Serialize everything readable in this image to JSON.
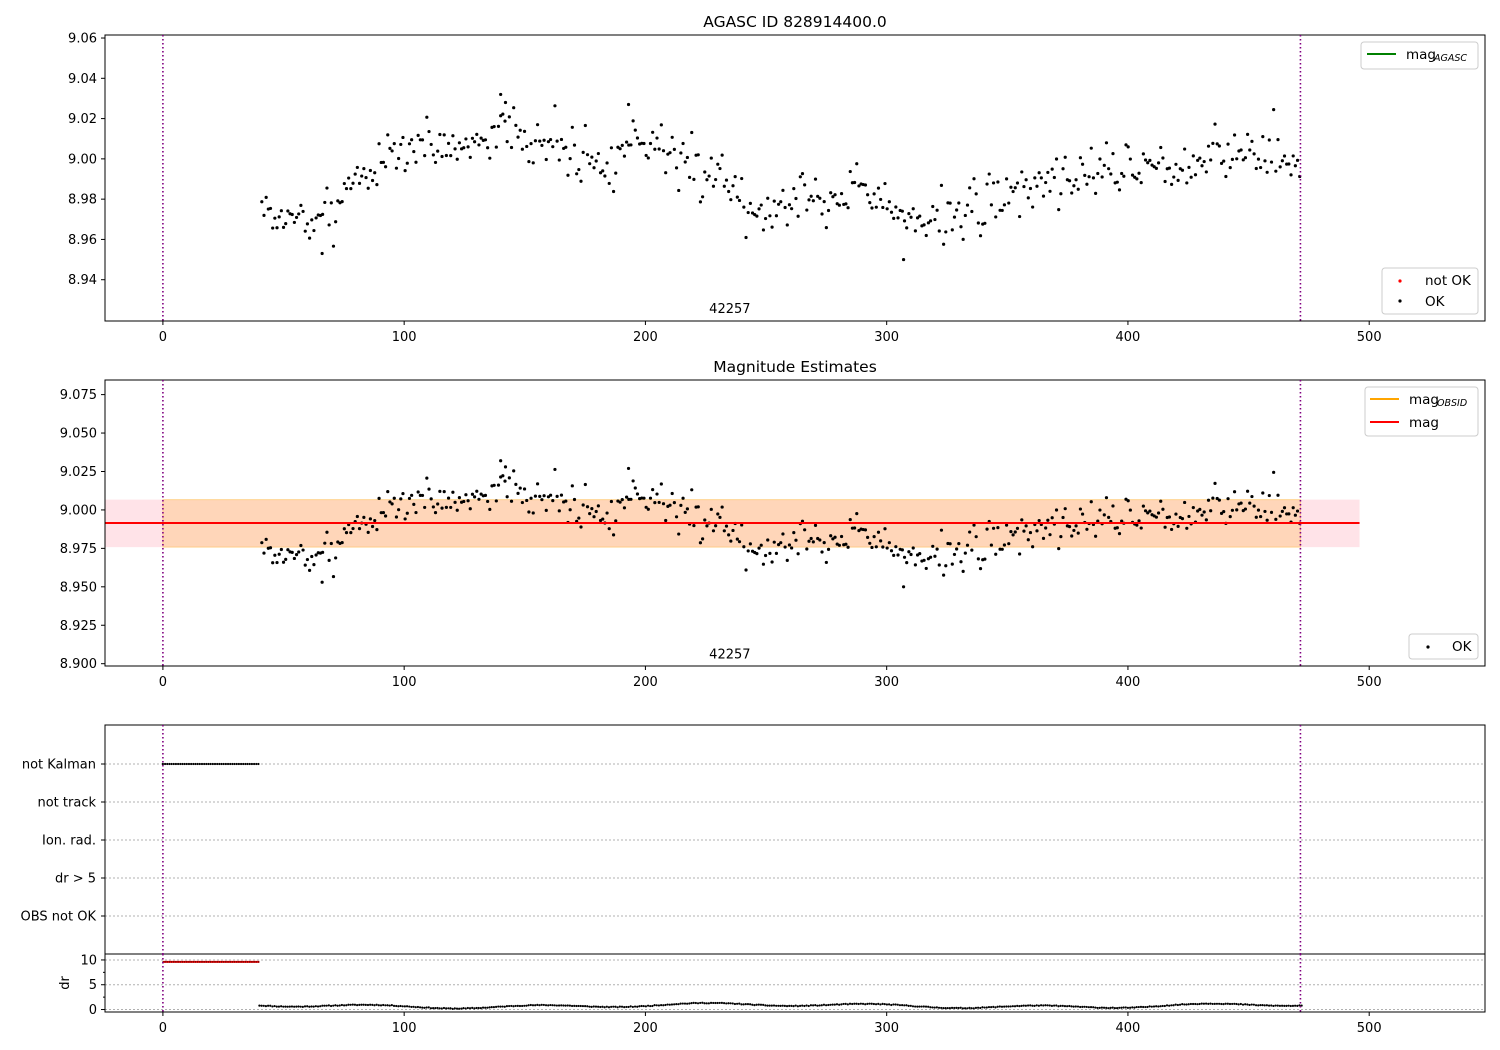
{
  "chart_data": [
    {
      "id": "panel1",
      "type": "scatter",
      "title": "AGASC ID 828914400.0",
      "xlim": [
        -24,
        548
      ],
      "ylim": [
        8.9195,
        9.0615
      ],
      "xticks": [
        0,
        100,
        200,
        300,
        400,
        500
      ],
      "yticks": [
        8.94,
        8.96,
        8.98,
        9.0,
        9.02,
        9.04,
        9.06
      ],
      "ytick_labels": [
        "8.94",
        "8.96",
        "8.98",
        "9.00",
        "9.02",
        "9.04",
        "9.06"
      ],
      "vlines": [
        0,
        471.5
      ],
      "vline_color": "#800080",
      "annotation": {
        "text": "42257",
        "x": 235,
        "y": 8.9235
      },
      "legend_upper": [
        {
          "label": "mag",
          "sub": "AGASC",
          "color": "#008000",
          "kind": "line"
        }
      ],
      "legend_lower": [
        {
          "label": "not OK",
          "color": "#ff0000",
          "kind": "dot"
        },
        {
          "label": "OK",
          "color": "#000000",
          "kind": "dot"
        }
      ],
      "series_seed": 7
    },
    {
      "id": "panel2",
      "type": "scatter",
      "title": "Magnitude Estimates",
      "xlim": [
        -24,
        548
      ],
      "ylim": [
        8.8985,
        9.0845
      ],
      "xticks": [
        0,
        100,
        200,
        300,
        400,
        500
      ],
      "yticks": [
        8.9,
        8.925,
        8.95,
        8.975,
        9.0,
        9.025,
        9.05,
        9.075
      ],
      "ytick_labels": [
        "8.900",
        "8.925",
        "8.950",
        "8.975",
        "9.000",
        "9.025",
        "9.050",
        "9.075"
      ],
      "vlines": [
        0,
        471.5
      ],
      "vline_color": "#800080",
      "mean_mag": 8.9915,
      "band_total": {
        "x": [
          -24,
          496
        ],
        "y": [
          8.9758,
          9.0067
        ],
        "color": "#ffc0cb"
      },
      "band_obsid": {
        "x": [
          0,
          471.5
        ],
        "y": [
          8.9758,
          9.0067
        ],
        "color": "#ffa500"
      },
      "annotation": {
        "text": "42257",
        "x": 235,
        "y": 8.9035
      },
      "legend_upper": [
        {
          "label": "mag",
          "sub": "OBSID",
          "color": "#ffa500",
          "kind": "line"
        },
        {
          "label": "mag",
          "sub": "",
          "color": "#ff0000",
          "kind": "line"
        }
      ],
      "legend_lower": [
        {
          "label": "OK",
          "color": "#000000",
          "kind": "dot"
        }
      ],
      "series_seed": 7
    },
    {
      "id": "panel3",
      "type": "scatter",
      "title": "",
      "xlim": [
        -24,
        548
      ],
      "categories": [
        "not Kalman",
        "not track",
        "Ion. rad.",
        "dr > 5",
        "OBS not OK"
      ],
      "flag_ranges": [
        {
          "category": "not Kalman",
          "x": [
            0,
            40
          ]
        }
      ]
    },
    {
      "id": "panel4",
      "type": "scatter",
      "title": "",
      "xlim": [
        -24,
        548
      ],
      "ylim": [
        -0.5,
        11.2
      ],
      "xticks": [
        0,
        100,
        200,
        300,
        400,
        500
      ],
      "yticks": [
        0,
        5,
        10
      ],
      "ytick_labels": [
        "0",
        "5",
        "10"
      ],
      "ylabel": "dr",
      "red_segment": {
        "x": [
          0,
          40
        ],
        "y": 9.6
      },
      "dr_range": {
        "x": [
          40,
          472
        ],
        "y": [
          0.1,
          1.6
        ]
      }
    }
  ]
}
